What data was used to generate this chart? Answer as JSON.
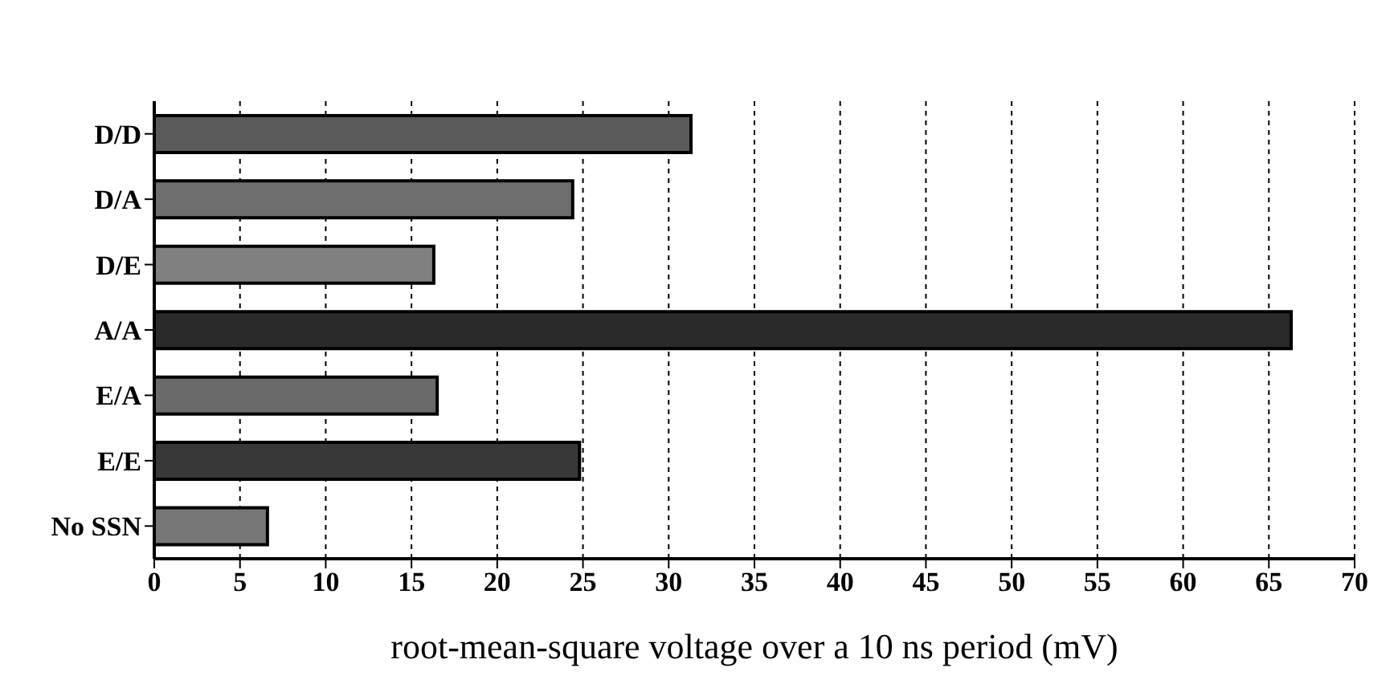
{
  "chart_data": {
    "type": "bar",
    "orientation": "horizontal",
    "xlabel": "root-mean-square voltage over a 10 ns period (mV)",
    "categories": [
      "D/D",
      "D/A",
      "D/E",
      "A/A",
      "E/A",
      "E/E",
      "No SSN"
    ],
    "values": [
      31.3,
      24.4,
      16.3,
      66.3,
      16.5,
      24.8,
      6.6
    ],
    "colors": [
      "#5a5a5a",
      "#6e6e6e",
      "#808080",
      "#2a2a2a",
      "#6a6a6a",
      "#383838",
      "#777777"
    ],
    "xlim": [
      0,
      70
    ],
    "xticks": [
      0,
      5,
      10,
      15,
      20,
      25,
      30,
      35,
      40,
      45,
      50,
      55,
      60,
      65,
      70
    ],
    "grid": "x"
  }
}
